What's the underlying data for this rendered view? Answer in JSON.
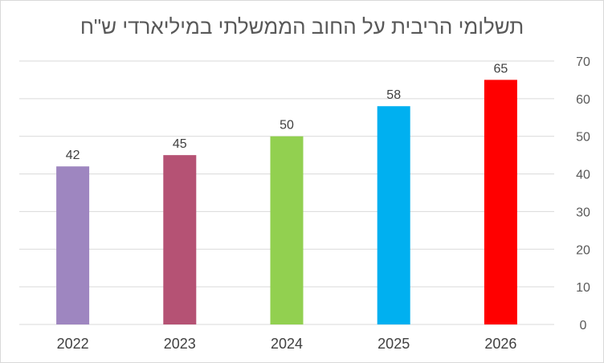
{
  "chart_data": {
    "type": "bar",
    "title": "תשלומי הריבית על החוב הממשלתי במיליארדי ש\"ח",
    "categories": [
      "2022",
      "2023",
      "2024",
      "2025",
      "2026"
    ],
    "values": [
      42,
      45,
      50,
      58,
      65
    ],
    "colors": [
      "#9e86c0",
      "#b55274",
      "#92d050",
      "#00b0f0",
      "#ff0000"
    ],
    "ylim": [
      0,
      70
    ],
    "yticks": [
      0,
      10,
      20,
      30,
      40,
      50,
      60,
      70
    ],
    "yaxis_side": "right",
    "grid": true,
    "data_labels": true,
    "legend": "none"
  }
}
